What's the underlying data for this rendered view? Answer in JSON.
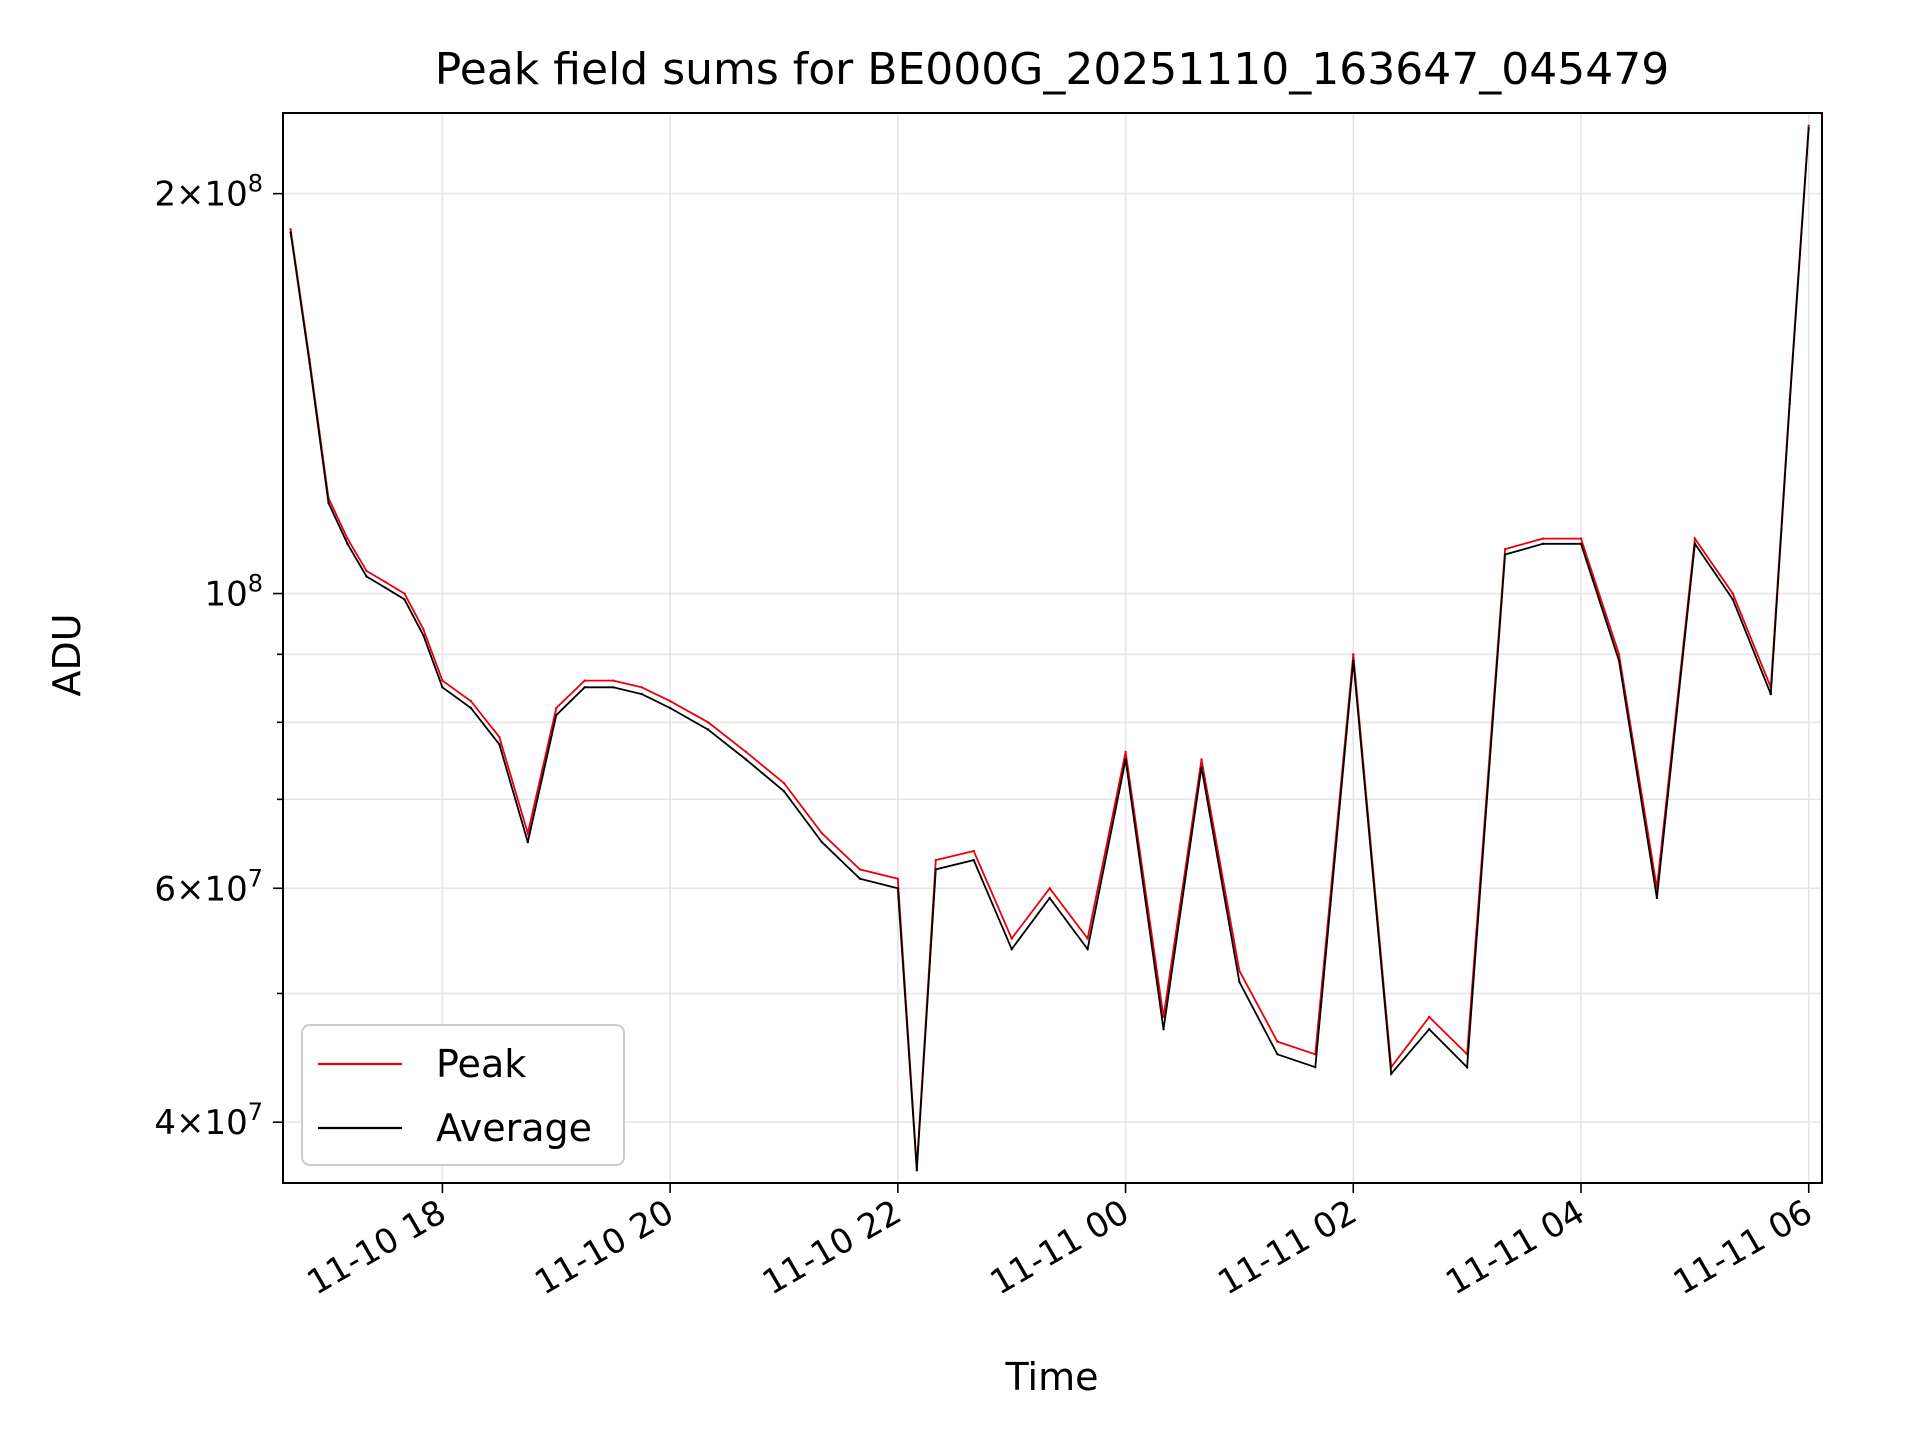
{
  "chart_data": {
    "type": "line",
    "title": "Peak field sums for BE000G_20251110_163647_045479",
    "xlabel": "Time",
    "ylabel": "ADU",
    "yscale": "log",
    "xlim": [
      "2025-11-10 16:36",
      "2025-11-11 06:07"
    ],
    "ylim": [
      36000000,
      230000000
    ],
    "grid": true,
    "legend_position": "lower-left",
    "x_tick_labels": [
      "11-10 18",
      "11-10 20",
      "11-10 22",
      "11-11 00",
      "11-11 02",
      "11-11 04",
      "11-11 06"
    ],
    "y_tick_labels": [
      {
        "value": 40000000,
        "mantissa": "4",
        "exponent": "7"
      },
      {
        "value": 60000000,
        "mantissa": "6",
        "exponent": "7"
      },
      {
        "value": 100000000,
        "mantissa": "",
        "exponent": "8"
      },
      {
        "value": 200000000,
        "mantissa": "2",
        "exponent": "8"
      }
    ],
    "x": [
      "2025-11-10 16:40",
      "2025-11-10 16:50",
      "2025-11-10 17:00",
      "2025-11-10 17:10",
      "2025-11-10 17:20",
      "2025-11-10 17:30",
      "2025-11-10 17:40",
      "2025-11-10 17:50",
      "2025-11-10 18:00",
      "2025-11-10 18:15",
      "2025-11-10 18:30",
      "2025-11-10 18:45",
      "2025-11-10 19:00",
      "2025-11-10 19:15",
      "2025-11-10 19:30",
      "2025-11-10 19:45",
      "2025-11-10 20:00",
      "2025-11-10 20:20",
      "2025-11-10 20:40",
      "2025-11-10 21:00",
      "2025-11-10 21:20",
      "2025-11-10 21:40",
      "2025-11-10 22:00",
      "2025-11-10 22:10",
      "2025-11-10 22:20",
      "2025-11-10 22:40",
      "2025-11-10 23:00",
      "2025-11-10 23:20",
      "2025-11-10 23:40",
      "2025-11-11 00:00",
      "2025-11-11 00:20",
      "2025-11-11 00:40",
      "2025-11-11 01:00",
      "2025-11-11 01:20",
      "2025-11-11 01:40",
      "2025-11-11 02:00",
      "2025-11-11 02:20",
      "2025-11-11 02:40",
      "2025-11-11 03:00",
      "2025-11-11 03:20",
      "2025-11-11 03:40",
      "2025-11-11 04:00",
      "2025-11-11 04:20",
      "2025-11-11 04:40",
      "2025-11-11 05:00",
      "2025-11-11 05:20",
      "2025-11-11 05:40",
      "2025-11-11 05:50",
      "2025-11-11 06:00"
    ],
    "series": [
      {
        "name": "Peak",
        "color": "#e8000b",
        "values": [
          188000000,
          150000000,
          118000000,
          110000000,
          104000000,
          102000000,
          100000000,
          94000000,
          86000000,
          83000000,
          78000000,
          66000000,
          82000000,
          86000000,
          86000000,
          85000000,
          83000000,
          80000000,
          76000000,
          72000000,
          66000000,
          62000000,
          61000000,
          37000000,
          63000000,
          64000000,
          55000000,
          60000000,
          55000000,
          76000000,
          48000000,
          75000000,
          52000000,
          46000000,
          45000000,
          90000000,
          44000000,
          48000000,
          45000000,
          108000000,
          110000000,
          110000000,
          90000000,
          60000000,
          110000000,
          100000000,
          85000000,
          140000000,
          225000000
        ]
      },
      {
        "name": "Average",
        "color": "#000000",
        "values": [
          187000000,
          149000000,
          117000000,
          109000000,
          103000000,
          101000000,
          99000000,
          93000000,
          85000000,
          82000000,
          77000000,
          65000000,
          81000000,
          85000000,
          85000000,
          84000000,
          82000000,
          79000000,
          75000000,
          71000000,
          65000000,
          61000000,
          60000000,
          36800000,
          62000000,
          63000000,
          54000000,
          59000000,
          54000000,
          75000000,
          47000000,
          74000000,
          51000000,
          45000000,
          44000000,
          89000000,
          43500000,
          47000000,
          44000000,
          107000000,
          109000000,
          109000000,
          89000000,
          59000000,
          109000000,
          99000000,
          84000000,
          139000000,
          224000000
        ]
      }
    ]
  }
}
